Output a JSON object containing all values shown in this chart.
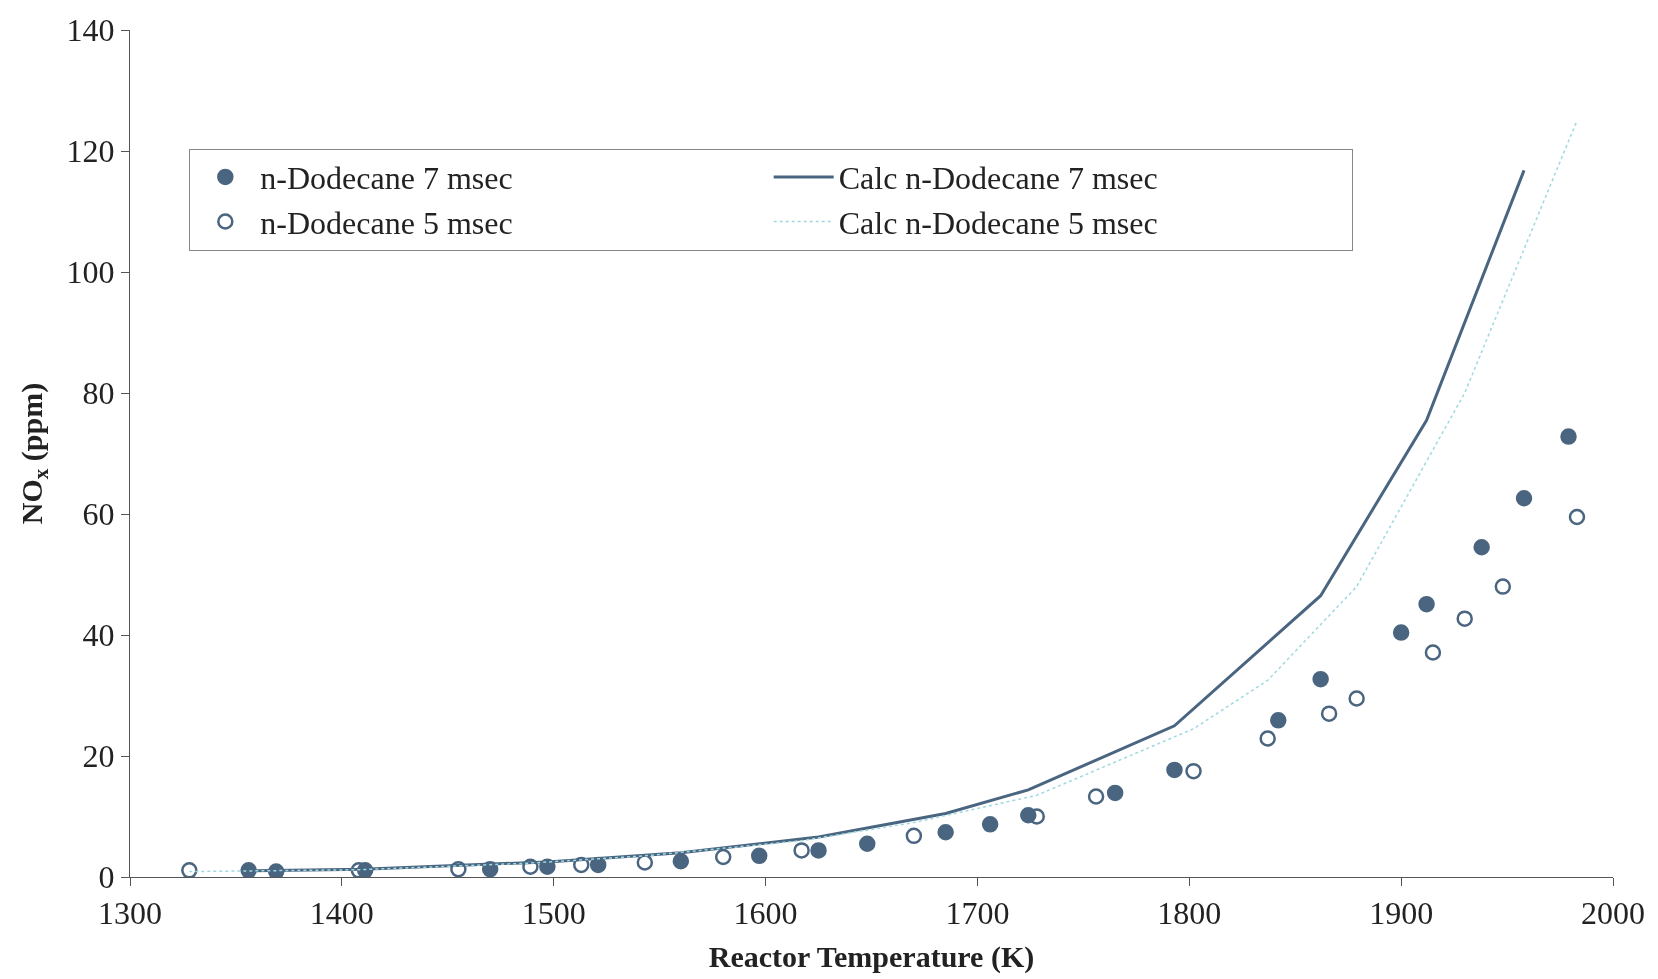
{
  "chart_data": {
    "type": "scatter",
    "xlabel": "Reactor Temperature (K)",
    "ylabel": "NO$_{x}$ (ppm)",
    "xlim": [
      1300,
      2000
    ],
    "xticks": [
      1300,
      1400,
      1500,
      1600,
      1700,
      1800,
      1900,
      2000
    ],
    "ylim": [
      0,
      140
    ],
    "yticks": [
      0,
      20,
      40,
      60,
      80,
      100,
      120,
      140
    ],
    "legend": "top left",
    "series": [
      {
        "name": "n-Dodecane 7 msec",
        "marker": "circle",
        "color": "#4a6580",
        "x": [
          1356,
          1369,
          1411,
          1470,
          1497,
          1521,
          1560,
          1597,
          1625,
          1648,
          1685,
          1706,
          1724,
          1765,
          1793,
          1842,
          1862,
          1900,
          1912,
          1938,
          1958,
          1979
        ],
        "values": [
          1.1,
          0.9,
          1.1,
          1.3,
          1.7,
          2.0,
          2.6,
          3.5,
          4.4,
          5.5,
          7.4,
          8.7,
          10.2,
          13.9,
          17.7,
          25.9,
          32.7,
          40.4,
          45.1,
          54.5,
          62.6,
          72.8
        ]
      },
      {
        "name": "Calc n-Dodecane 7 msec",
        "type": "line",
        "line_style": "solid",
        "color": "#4a6580",
        "x": [
          1356,
          1410,
          1497,
          1560,
          1625,
          1685,
          1724,
          1793,
          1862,
          1912,
          1958
        ],
        "values": [
          1.0,
          1.3,
          2.5,
          4.0,
          6.6,
          10.5,
          14.4,
          25.0,
          46.5,
          75.5,
          116.8
        ]
      },
      {
        "name": "n-Dodecane 5 msec",
        "marker": "circle-open",
        "color": "#4a6580",
        "x": [
          1328,
          1408,
          1455,
          1489,
          1513,
          1543,
          1580,
          1617,
          1670,
          1728,
          1756,
          1802,
          1837,
          1866,
          1879,
          1915,
          1930,
          1948,
          1983
        ],
        "values": [
          1.1,
          1.1,
          1.3,
          1.7,
          2.0,
          2.4,
          3.3,
          4.4,
          6.8,
          10.0,
          13.3,
          17.5,
          22.9,
          27.0,
          29.5,
          37.1,
          42.7,
          48.0,
          59.5
        ]
      },
      {
        "name": "Calc n-Dodecane 5 msec",
        "type": "line",
        "line_style": "dotted",
        "color": "#9ed8e0",
        "x": [
          1328,
          1408,
          1489,
          1543,
          1617,
          1670,
          1728,
          1802,
          1837,
          1879,
          1930,
          1983
        ],
        "values": [
          0.9,
          1.2,
          2.3,
          3.5,
          6.0,
          9.0,
          13.5,
          24.5,
          32.5,
          48.0,
          80.0,
          125.0
        ]
      }
    ]
  }
}
